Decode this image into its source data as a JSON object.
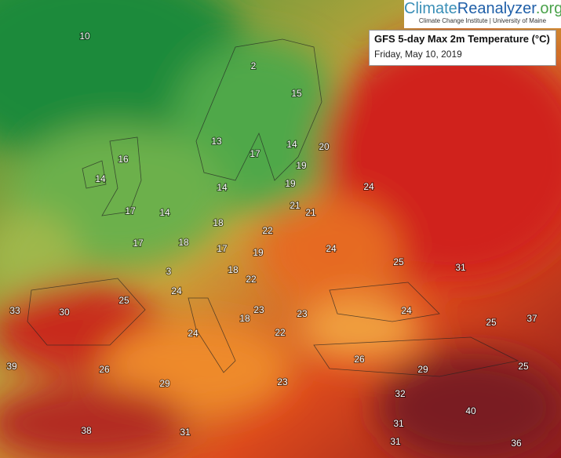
{
  "brand": {
    "name_part1": "Climate",
    "name_part2": "Reanalyzer",
    "name_part3": ".org",
    "tagline": "Climate Change Institute | University of Maine"
  },
  "header": {
    "title": "GFS 5-day Max 2m Temperature (°C)",
    "date": "Friday, May 10, 2019"
  },
  "map": {
    "labels": [
      10,
      2,
      15,
      13,
      14,
      20,
      17,
      16,
      14,
      19,
      19,
      14,
      24,
      17,
      14,
      21,
      21,
      18,
      22,
      17,
      18,
      17,
      19,
      24,
      25,
      31,
      18,
      22,
      3,
      25,
      24,
      33,
      30,
      23,
      23,
      24,
      25,
      37,
      18,
      24,
      22,
      26,
      29,
      25,
      39,
      26,
      29,
      23,
      32,
      40,
      31,
      38,
      31,
      31,
      36
    ]
  }
}
